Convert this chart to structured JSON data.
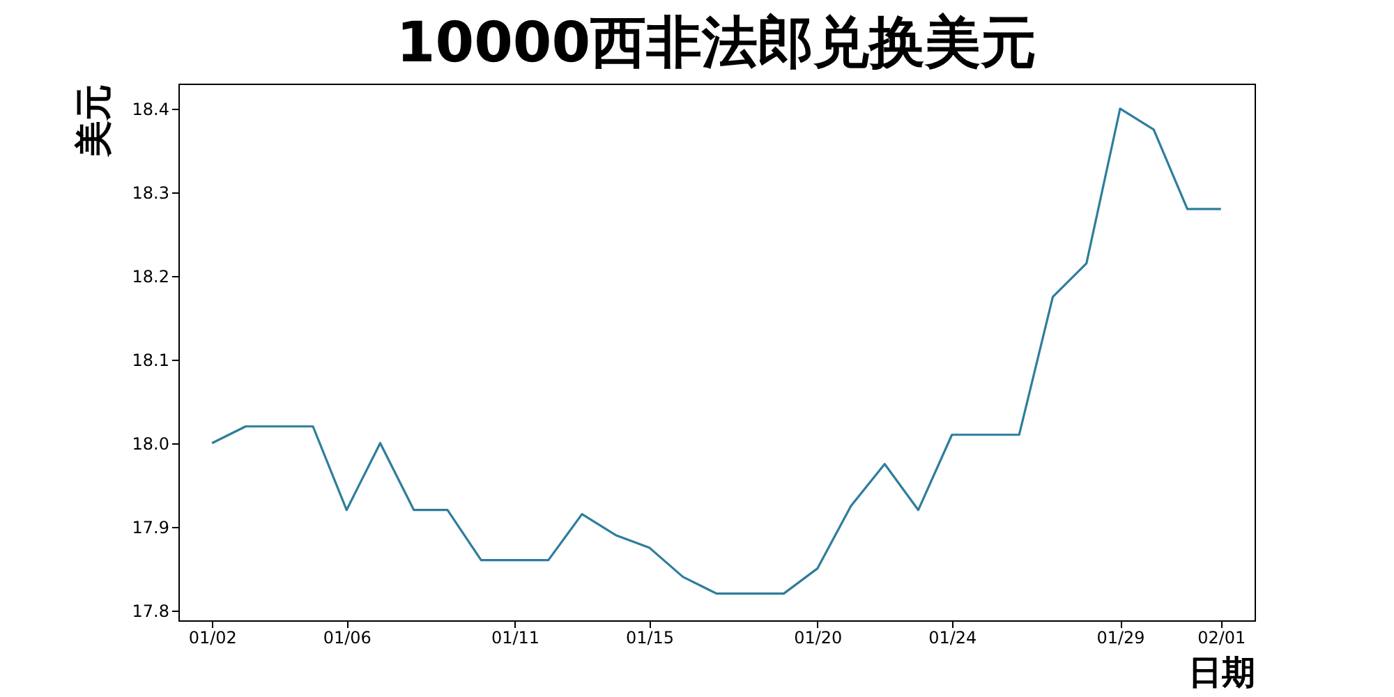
{
  "chart_data": {
    "type": "line",
    "title": "10000西非法郎兑换美元",
    "xlabel": "日期",
    "ylabel": "美元",
    "categories": [
      "01/02",
      null,
      null,
      null,
      "01/06",
      null,
      null,
      null,
      null,
      "01/11",
      null,
      null,
      null,
      "01/15",
      null,
      null,
      null,
      null,
      "01/20",
      null,
      null,
      null,
      "01/24",
      null,
      null,
      null,
      null,
      "01/29",
      null,
      null,
      "02/01"
    ],
    "series": [
      {
        "color": "#2e7d9c",
        "values": [
          18.0,
          18.02,
          18.02,
          18.02,
          17.92,
          18.0,
          17.92,
          17.92,
          17.86,
          17.86,
          17.86,
          17.915,
          17.89,
          17.875,
          17.84,
          17.82,
          17.82,
          17.82,
          17.85,
          17.925,
          17.975,
          17.92,
          18.01,
          18.01,
          18.01,
          18.175,
          18.215,
          18.4,
          18.375,
          18.28,
          18.28
        ]
      }
    ],
    "ylim": [
      17.788,
      18.43
    ],
    "yticks": [
      17.8,
      17.9,
      {
        "value": 18,
        "label": "18.0"
      },
      18.1,
      18.2,
      18.3,
      18.4
    ]
  }
}
